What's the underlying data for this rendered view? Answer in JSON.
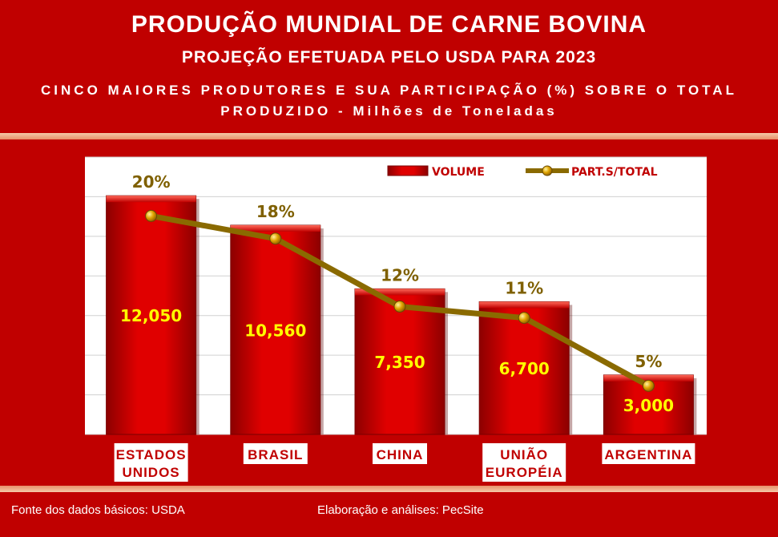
{
  "header": {
    "title": "PRODUÇÃO MUNDIAL DE CARNE BOVINA",
    "subtitle": "PROJEÇÃO EFETUADA PELO USDA PARA 2023",
    "description": "CINCO MAIORES PRODUTORES E SUA PARTICIPAÇÃO (%) SOBRE O TOTAL PRODUZIDO - Milhões de Toneladas"
  },
  "footer": {
    "source": "Fonte dos dados básicos: USDA",
    "author": "Elaboração e análises: PecSite"
  },
  "colors": {
    "background": "#c00000",
    "bar": "#d40000",
    "line": "#8a6a00",
    "value_label": "#ffff00",
    "percent_label": "#7f6000"
  },
  "chart_data": {
    "type": "bar",
    "categories": [
      [
        "ESTADOS",
        "UNIDOS"
      ],
      [
        "BRASIL"
      ],
      [
        "CHINA"
      ],
      [
        "UNIÃO",
        "EUROPÉIA"
      ],
      [
        "ARGENTINA"
      ]
    ],
    "series": [
      {
        "name": "VOLUME",
        "type": "bar",
        "values": [
          12050,
          10560,
          7350,
          6700,
          3000
        ],
        "labels": [
          "12,050",
          "10,560",
          "7,350",
          "6,700",
          "3,000"
        ]
      },
      {
        "name": "PART.S/TOTAL",
        "type": "line",
        "values": [
          20,
          18,
          12,
          11,
          5
        ],
        "labels": [
          "20%",
          "18%",
          "12%",
          "11%",
          "5%"
        ]
      }
    ],
    "ylim": [
      0,
      14000
    ],
    "grid": true,
    "legend": "top-right"
  }
}
